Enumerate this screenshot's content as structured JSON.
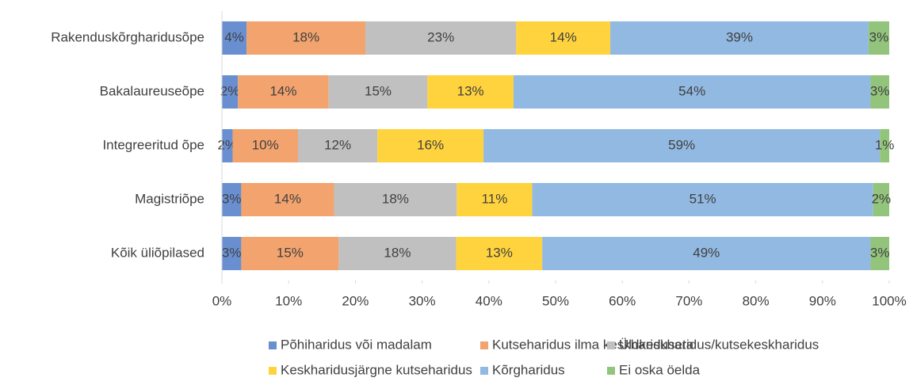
{
  "chart_data": {
    "type": "stacked-bar-horizontal",
    "categories": [
      "Rakenduskõrgharidusõpe",
      "Bakalaureuseõpe",
      "Integreeritud õpe",
      "Magistriõpe",
      "Kõik üliõpilased"
    ],
    "series": [
      {
        "name": "Põhiharidus või madalam",
        "color": "#6a8fd1",
        "values": [
          3.7,
          2.4,
          1.6,
          2.9,
          2.9
        ],
        "value_labels": [
          "4%",
          "2%",
          "2%",
          "3%",
          "3%"
        ]
      },
      {
        "name": "Kutseharidus ilma keskhariduseta",
        "color": "#f2a36e",
        "values": [
          17.8,
          13.6,
          9.8,
          13.9,
          14.6
        ],
        "value_labels": [
          "18%",
          "14%",
          "10%",
          "14%",
          "15%"
        ]
      },
      {
        "name": "Üldkeskharidus/kutsekeskharidus",
        "color": "#c0c0c0",
        "values": [
          22.6,
          14.8,
          11.9,
          18.4,
          17.6
        ],
        "value_labels": [
          "23%",
          "15%",
          "12%",
          "18%",
          "18%"
        ]
      },
      {
        "name": "Keskharidusjärgne kutseharidus",
        "color": "#ffd33d",
        "values": [
          14.1,
          12.9,
          15.9,
          11.3,
          12.9
        ],
        "value_labels": [
          "14%",
          "13%",
          "16%",
          "11%",
          "13%"
        ]
      },
      {
        "name": "Kõrgharidus",
        "color": "#92b9e2",
        "values": [
          38.7,
          53.5,
          59.4,
          51.1,
          49.2
        ],
        "value_labels": [
          "39%",
          "54%",
          "59%",
          "51%",
          "49%"
        ]
      },
      {
        "name": "Ei oska öelda",
        "color": "#92c47c",
        "values": [
          3.1,
          2.8,
          1.4,
          2.4,
          2.8
        ],
        "value_labels": [
          "3%",
          "3%",
          "1%",
          "2%",
          "3%"
        ]
      }
    ],
    "xlim": [
      0,
      100
    ],
    "xticks": [
      {
        "value": 0,
        "label": "0%"
      },
      {
        "value": 10,
        "label": "10%"
      },
      {
        "value": 20,
        "label": "20%"
      },
      {
        "value": 30,
        "label": "30%"
      },
      {
        "value": 40,
        "label": "40%"
      },
      {
        "value": 50,
        "label": "50%"
      },
      {
        "value": 60,
        "label": "60%"
      },
      {
        "value": 70,
        "label": "70%"
      },
      {
        "value": 80,
        "label": "80%"
      },
      {
        "value": 90,
        "label": "90%"
      },
      {
        "value": 100,
        "label": "100%"
      }
    ],
    "legend": "bottom"
  }
}
